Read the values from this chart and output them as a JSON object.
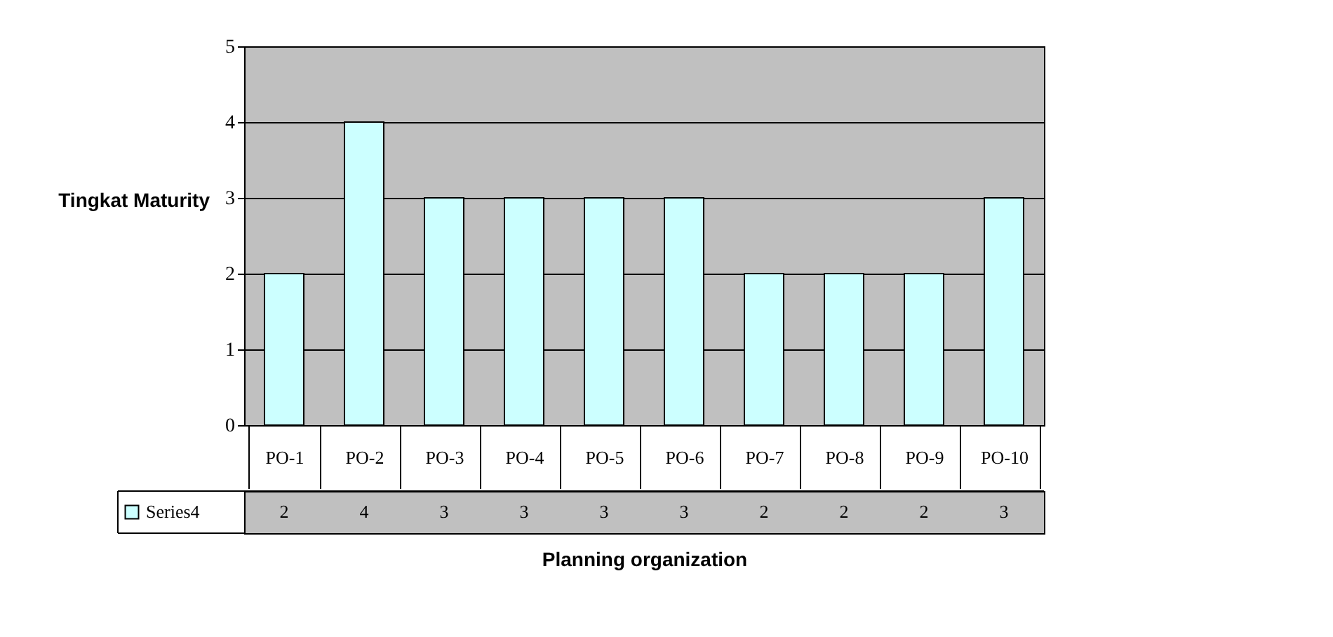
{
  "chart_data": {
    "type": "bar",
    "xlabel": "Planning organization",
    "ylabel": "Tingkat Maturity",
    "categories": [
      "PO-1",
      "PO-2",
      "PO-3",
      "PO-4",
      "PO-5",
      "PO-6",
      "PO-7",
      "PO-8",
      "PO-9",
      "PO-10"
    ],
    "series": [
      {
        "name": "Series4",
        "color": "#ccffff",
        "values": [
          2,
          4,
          3,
          3,
          3,
          3,
          2,
          2,
          2,
          3
        ]
      }
    ],
    "ylim": [
      0,
      5
    ],
    "yticks": [
      0,
      1,
      2,
      3,
      4,
      5
    ],
    "grid": "y",
    "data_labels": true,
    "legend": "bottom left"
  }
}
